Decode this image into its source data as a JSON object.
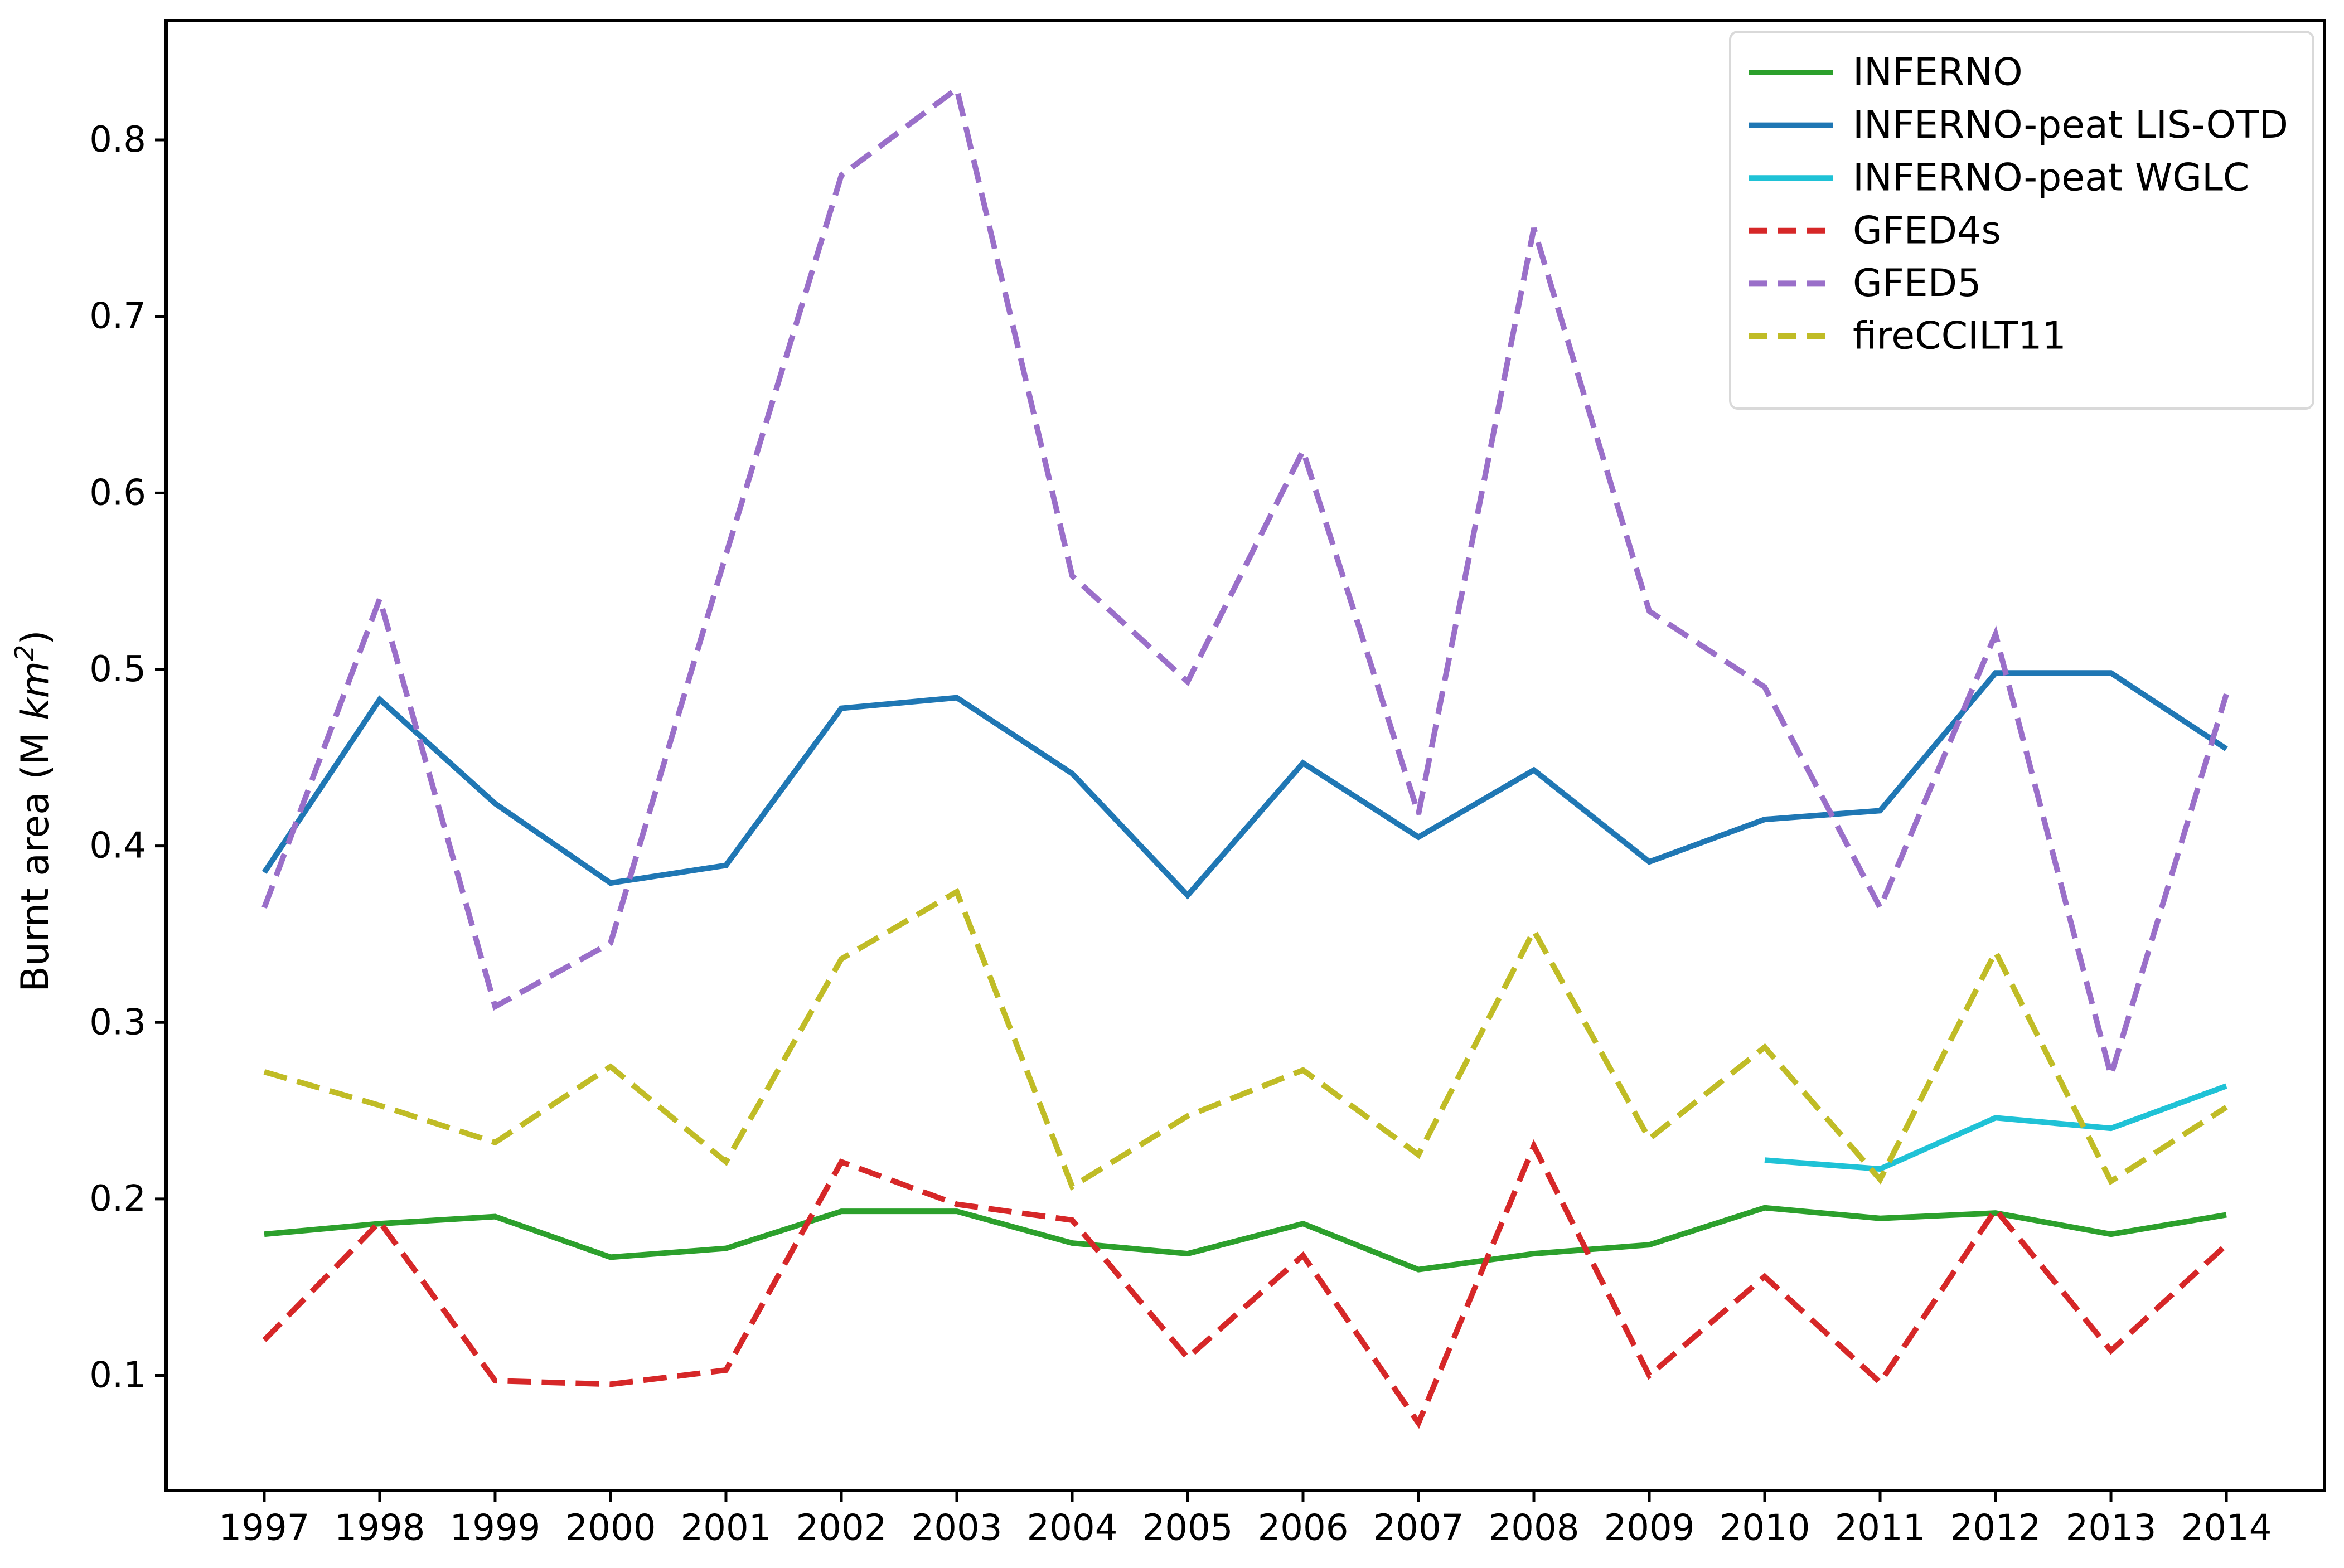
{
  "chart_data": {
    "type": "line",
    "title": "",
    "xlabel": "",
    "ylabel": "Burnt area (M km²)",
    "ylabel_parts": {
      "prefix": "Burnt area (M ",
      "math": "km",
      "sup": "2",
      "suffix": ")"
    },
    "x": [
      1997,
      1998,
      1999,
      2000,
      2001,
      2002,
      2003,
      2004,
      2005,
      2006,
      2007,
      2008,
      2009,
      2010,
      2011,
      2012,
      2013,
      2014
    ],
    "xticks": [
      1997,
      1998,
      1999,
      2000,
      2001,
      2002,
      2003,
      2004,
      2005,
      2006,
      2007,
      2008,
      2009,
      2010,
      2011,
      2012,
      2013,
      2014
    ],
    "yticks": [
      0.1,
      0.2,
      0.3,
      0.4,
      0.5,
      0.6,
      0.7,
      0.8
    ],
    "ytick_labels": [
      "0.1",
      "0.2",
      "0.3",
      "0.4",
      "0.5",
      "0.6",
      "0.7",
      "0.8"
    ],
    "xlim": [
      1996.15,
      2014.85
    ],
    "ylim": [
      0.0348,
      0.8676
    ],
    "grid": false,
    "legend_position": "upper right",
    "series": [
      {
        "name": "INFERNO",
        "color": "#2ca02c",
        "style": "solid",
        "values": [
          0.18,
          0.186,
          0.19,
          0.167,
          0.172,
          0.193,
          0.193,
          0.175,
          0.169,
          0.186,
          0.16,
          0.169,
          0.174,
          0.195,
          0.189,
          0.192,
          0.18,
          0.191
        ]
      },
      {
        "name": "INFERNO-peat LIS-OTD",
        "color": "#1f77b4",
        "style": "solid",
        "values": [
          0.385,
          0.483,
          0.424,
          0.379,
          0.389,
          0.478,
          0.484,
          0.441,
          0.372,
          0.447,
          0.405,
          0.443,
          0.391,
          0.415,
          0.42,
          0.498,
          0.498,
          0.455
        ]
      },
      {
        "name": "INFERNO-peat WGLC",
        "color": "#1fc2d6",
        "style": "solid",
        "values": [
          null,
          null,
          null,
          null,
          null,
          null,
          null,
          null,
          null,
          null,
          null,
          null,
          null,
          0.222,
          0.217,
          0.246,
          0.24,
          0.264
        ]
      },
      {
        "name": "GFED4s",
        "color": "#d62728",
        "style": "dashed",
        "values": [
          0.12,
          0.187,
          0.097,
          0.095,
          0.103,
          0.221,
          0.197,
          0.188,
          0.11,
          0.168,
          0.073,
          0.23,
          0.1,
          0.156,
          0.096,
          0.194,
          0.114,
          0.174
        ]
      },
      {
        "name": "GFED5",
        "color": "#9a6fc9",
        "style": "dashed",
        "values": [
          0.365,
          0.54,
          0.309,
          0.345,
          0.565,
          0.78,
          0.829,
          0.553,
          0.493,
          0.624,
          0.418,
          0.75,
          0.533,
          0.49,
          0.365,
          0.52,
          0.27,
          0.486
        ]
      },
      {
        "name": "fireCCILT11",
        "color": "#c0bc26",
        "style": "dashed",
        "values": [
          0.272,
          0.253,
          0.232,
          0.275,
          0.221,
          0.336,
          0.374,
          0.207,
          0.247,
          0.273,
          0.225,
          0.352,
          0.234,
          0.286,
          0.211,
          0.34,
          0.21,
          0.252
        ]
      }
    ],
    "legend": {
      "entries": [
        "INFERNO",
        "INFERNO-peat LIS-OTD",
        "INFERNO-peat WGLC",
        "GFED4s",
        "GFED5",
        "fireCCILT11"
      ],
      "border_color": "#d9d9d9",
      "background": "#ffffff"
    },
    "axis_color": "#000000"
  }
}
